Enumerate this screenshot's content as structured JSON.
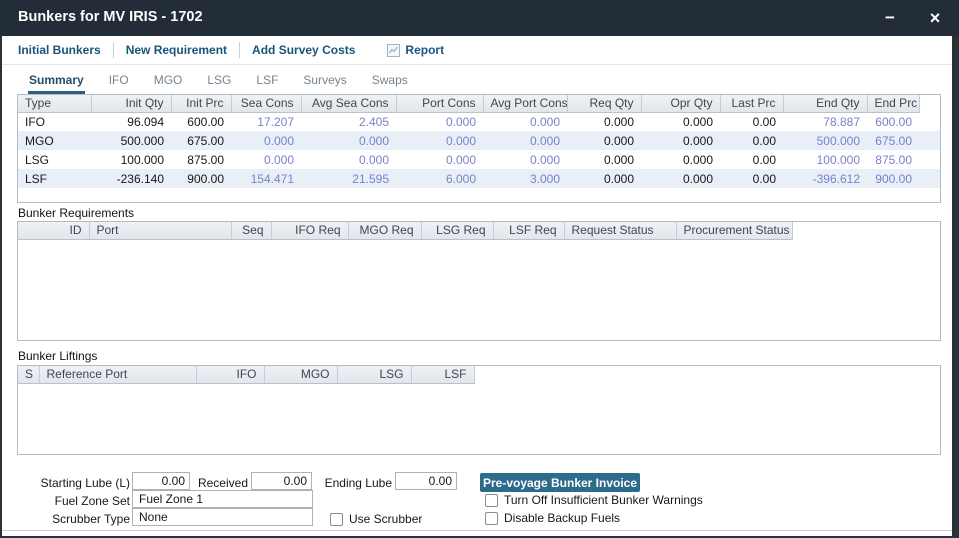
{
  "window": {
    "title": "Bunkers for MV IRIS - 1702",
    "minimize_icon": "−",
    "close_icon": "×"
  },
  "toolbar": {
    "links": [
      "Initial Bunkers",
      "New Requirement",
      "Add Survey Costs"
    ],
    "report_label": "Report",
    "report_icon": "line-chart"
  },
  "tabs": [
    {
      "label": "Summary",
      "active": true
    },
    {
      "label": "IFO",
      "active": false
    },
    {
      "label": "MGO",
      "active": false
    },
    {
      "label": "LSG",
      "active": false
    },
    {
      "label": "LSF",
      "active": false
    },
    {
      "label": "Surveys",
      "active": false
    },
    {
      "label": "Swaps",
      "active": false
    }
  ],
  "summary_table": {
    "columns": [
      "Type",
      "Init Qty",
      "Init Prc",
      "Sea Cons",
      "Avg Sea Cons",
      "Port Cons",
      "Avg Port Cons",
      "Req Qty",
      "Opr Qty",
      "Last Prc",
      "End Qty",
      "End Prc"
    ],
    "computed_columns": [
      3,
      4,
      5,
      6,
      10,
      11
    ],
    "rows": [
      [
        "IFO",
        "96.094",
        "600.00",
        "17.207",
        "2.405",
        "0.000",
        "0.000",
        "0.000",
        "0.000",
        "0.00",
        "78.887",
        "600.00"
      ],
      [
        "MGO",
        "500.000",
        "675.00",
        "0.000",
        "0.000",
        "0.000",
        "0.000",
        "0.000",
        "0.000",
        "0.00",
        "500.000",
        "675.00"
      ],
      [
        "LSG",
        "100.000",
        "875.00",
        "0.000",
        "0.000",
        "0.000",
        "0.000",
        "0.000",
        "0.000",
        "0.00",
        "100.000",
        "875.00"
      ],
      [
        "LSF",
        "-236.140",
        "900.00",
        "154.471",
        "21.595",
        "6.000",
        "3.000",
        "0.000",
        "0.000",
        "0.00",
        "-396.612",
        "900.00"
      ]
    ]
  },
  "requirements_table": {
    "section_label": "Bunker Requirements",
    "columns": [
      "ID",
      "Port",
      "Seq",
      "IFO Req",
      "MGO Req",
      "LSG Req",
      "LSF Req",
      "Request Status",
      "Procurement Status"
    ],
    "rows": []
  },
  "liftings_table": {
    "section_label": "Bunker Liftings",
    "columns": [
      "S",
      "Reference Port",
      "IFO",
      "MGO",
      "LSG",
      "LSF"
    ],
    "rows": []
  },
  "form": {
    "starting_lube_label": "Starting Lube (L)",
    "starting_lube_value": "0.00",
    "received_label": "Received",
    "received_value": "0.00",
    "ending_lube_label": "Ending Lube",
    "ending_lube_value": "0.00",
    "fuel_zone_label": "Fuel Zone Set",
    "fuel_zone_value": "Fuel Zone 1",
    "scrubber_type_label": "Scrubber Type",
    "scrubber_type_value": "None",
    "use_scrubber_label": "Use Scrubber",
    "invoice_button_label": "Pre-voyage Bunker Invoice",
    "warnings_checkbox_label": "Turn Off Insufficient Bunker Warnings",
    "backup_checkbox_label": "Disable Backup Fuels"
  },
  "colors": {
    "titlebar": "#232d37",
    "accent_link": "#1b5579",
    "active_tab": "#1d4f6b",
    "computed_value": "#7c80cb",
    "row_stripe": "#e9eff6",
    "invoice_button": "#2d6b8c"
  }
}
